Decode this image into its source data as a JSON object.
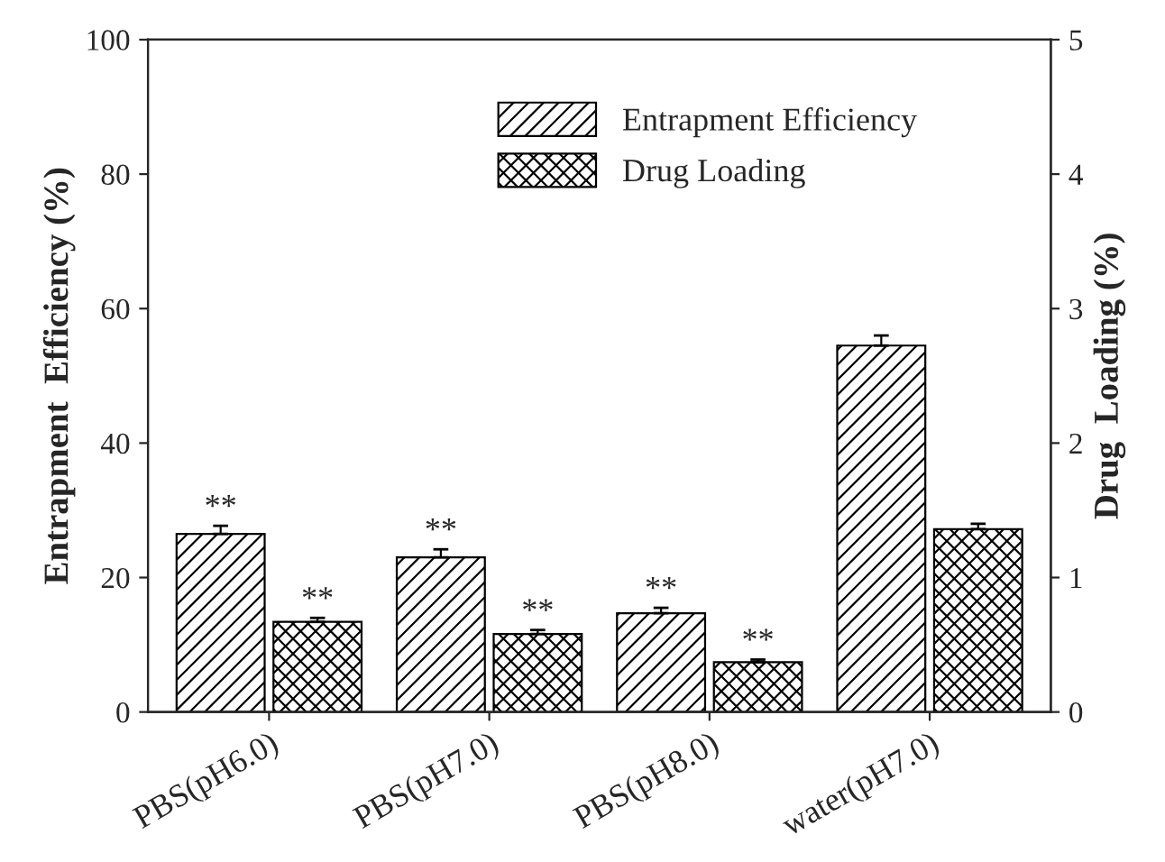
{
  "chart_data": {
    "type": "bar",
    "ylabel": "Entrapment  Efficiency (%)",
    "y2label": "Drug  Loading (%)",
    "categories": [
      "PBS(pH6.0)",
      "PBS(pH7.0)",
      "PBS(pH8.0)",
      "water(pH7.0)"
    ],
    "series": [
      {
        "name": "Entrapment Efficiency",
        "color": "#000000",
        "values": [
          26.5,
          23,
          14.7,
          54.5
        ],
        "errors": [
          1.2,
          1.2,
          0.8,
          1.5
        ],
        "value_labels": [
          "**",
          "**",
          "**",
          null
        ]
      },
      {
        "name": "Drug Loading",
        "color": "#000000",
        "axis": "y2",
        "values": [
          0.67,
          0.58,
          0.37,
          1.36
        ],
        "errors": [
          0.03,
          0.03,
          0.02,
          0.04
        ],
        "value_labels": [
          "**",
          "**",
          "**",
          null
        ]
      }
    ],
    "ylim": [
      0,
      100
    ],
    "yticks": [
      0,
      20,
      40,
      60,
      80,
      100
    ],
    "y2lim": [
      0,
      5
    ],
    "y2ticks": [
      0,
      1,
      2,
      3,
      4,
      5
    ],
    "legend": "top",
    "grid": false
  }
}
